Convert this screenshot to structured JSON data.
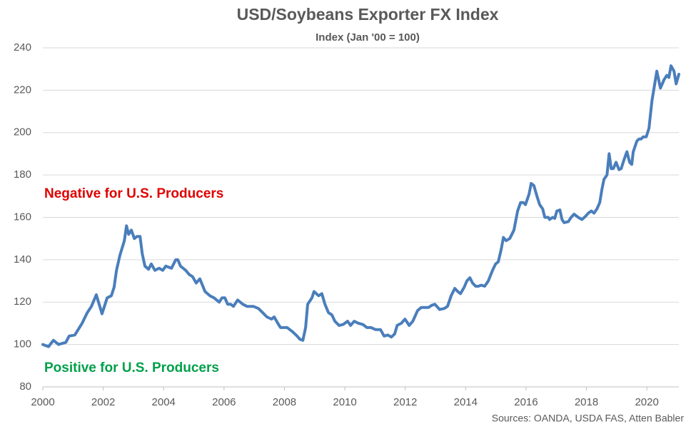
{
  "chart_data": {
    "type": "line",
    "title": "USD/Soybeans Exporter FX Index",
    "subtitle": "Index (Jan '00 = 100)",
    "annotations": [
      {
        "text": "Negative for U.S. Producers",
        "color": "#e00000"
      },
      {
        "text": "Positive for U.S. Producers",
        "color": "#00a04a"
      }
    ],
    "source": "Sources: OANDA, USDA FAS, Atten Babler",
    "x": [
      2000.0,
      2000.19,
      2000.35,
      2000.52,
      2000.76,
      2000.87,
      2001.06,
      2001.3,
      2001.47,
      2001.61,
      2001.77,
      2001.96,
      2002.13,
      2002.27,
      2002.36,
      2002.44,
      2002.55,
      2002.7,
      2002.77,
      2002.84,
      2002.93,
      2003.03,
      2003.12,
      2003.22,
      2003.29,
      2003.38,
      2003.5,
      2003.59,
      2003.71,
      2003.85,
      2003.97,
      2004.07,
      2004.26,
      2004.4,
      2004.47,
      2004.56,
      2004.73,
      2004.85,
      2004.96,
      2005.08,
      2005.2,
      2005.37,
      2005.53,
      2005.67,
      2005.84,
      2005.93,
      2006.03,
      2006.12,
      2006.22,
      2006.31,
      2006.45,
      2006.62,
      2006.76,
      2006.97,
      2007.14,
      2007.28,
      2007.42,
      2007.57,
      2007.66,
      2007.78,
      2007.87,
      2007.99,
      2008.09,
      2008.27,
      2008.42,
      2008.51,
      2008.61,
      2008.7,
      2008.77,
      2008.91,
      2008.98,
      2009.13,
      2009.24,
      2009.34,
      2009.46,
      2009.57,
      2009.67,
      2009.81,
      2009.95,
      2010.09,
      2010.19,
      2010.31,
      2010.45,
      2010.59,
      2010.73,
      2010.87,
      2011.02,
      2011.18,
      2011.3,
      2011.42,
      2011.54,
      2011.65,
      2011.73,
      2011.87,
      2011.99,
      2012.13,
      2012.25,
      2012.41,
      2012.53,
      2012.67,
      2012.77,
      2012.88,
      2012.98,
      2013.14,
      2013.29,
      2013.4,
      2013.52,
      2013.64,
      2013.74,
      2013.83,
      2013.95,
      2014.04,
      2014.14,
      2014.23,
      2014.33,
      2014.42,
      2014.52,
      2014.63,
      2014.75,
      2014.89,
      2014.99,
      2015.08,
      2015.18,
      2015.25,
      2015.34,
      2015.46,
      2015.6,
      2015.72,
      2015.82,
      2015.91,
      2015.98,
      2016.1,
      2016.17,
      2016.26,
      2016.36,
      2016.45,
      2016.55,
      2016.62,
      2016.74,
      2016.78,
      2016.88,
      2016.95,
      2017.02,
      2017.12,
      2017.19,
      2017.26,
      2017.4,
      2017.49,
      2017.59,
      2017.73,
      2017.85,
      2017.97,
      2018.06,
      2018.16,
      2018.25,
      2018.35,
      2018.44,
      2018.51,
      2018.58,
      2018.68,
      2018.75,
      2018.82,
      2018.89,
      2018.98,
      2019.08,
      2019.15,
      2019.24,
      2019.34,
      2019.43,
      2019.5,
      2019.55,
      2019.67,
      2019.74,
      2019.81,
      2019.88,
      2019.98,
      2020.07,
      2020.17,
      2020.26,
      2020.33,
      2020.45,
      2020.57,
      2020.66,
      2020.73,
      2020.8,
      2020.9,
      2020.97,
      2021.06
    ],
    "series": [
      {
        "color": "#4a7ebb",
        "values": [
          100,
          99,
          102,
          100,
          101,
          104,
          104.5,
          110,
          115,
          118,
          123.5,
          114.5,
          122,
          123,
          127,
          135,
          142,
          149,
          156,
          152,
          154,
          150,
          151,
          151,
          143,
          137,
          135.5,
          138,
          135,
          136,
          135,
          137,
          136,
          140,
          140,
          137,
          135,
          133,
          132,
          129,
          131,
          125,
          123,
          122,
          120,
          122,
          122,
          119,
          119,
          118,
          121,
          119,
          118,
          118,
          117,
          115,
          113,
          112,
          113,
          110,
          108,
          108,
          108,
          106,
          104,
          102.5,
          102,
          108,
          119,
          122,
          125,
          123,
          124,
          119,
          115,
          114,
          111,
          109,
          109.5,
          111,
          109,
          111,
          110,
          109.5,
          108,
          108,
          107,
          107,
          104,
          104.5,
          103.5,
          105,
          109,
          110,
          112,
          109,
          111,
          116,
          117.5,
          117.5,
          117.5,
          118.5,
          119,
          116.5,
          117,
          118,
          123,
          126.5,
          125,
          124,
          127,
          130,
          131.5,
          129,
          127.5,
          127.5,
          128,
          127.5,
          130,
          135,
          138,
          139,
          145,
          150.5,
          149,
          150,
          154,
          163,
          167,
          167,
          166,
          171,
          176,
          175,
          170,
          166,
          164,
          160,
          160,
          159,
          160,
          159.5,
          163,
          163.5,
          159,
          157.5,
          158,
          160,
          161.5,
          160,
          159,
          160.5,
          162,
          163,
          162,
          164,
          167,
          173,
          178,
          180,
          190,
          183,
          183,
          186,
          182.5,
          183,
          187,
          191,
          186,
          185,
          191,
          196,
          197,
          197,
          198,
          198,
          202,
          215,
          223,
          229,
          221,
          225,
          227,
          226,
          231.5,
          229,
          223,
          227.5
        ]
      }
    ],
    "xlim": [
      2000,
      2021.06
    ],
    "xticks": [
      2000,
      2002,
      2004,
      2006,
      2008,
      2010,
      2012,
      2014,
      2016,
      2018,
      2020
    ],
    "ylim": [
      80,
      240
    ],
    "yticks": [
      80,
      100,
      120,
      140,
      160,
      180,
      200,
      220,
      240
    ],
    "grid": true
  }
}
